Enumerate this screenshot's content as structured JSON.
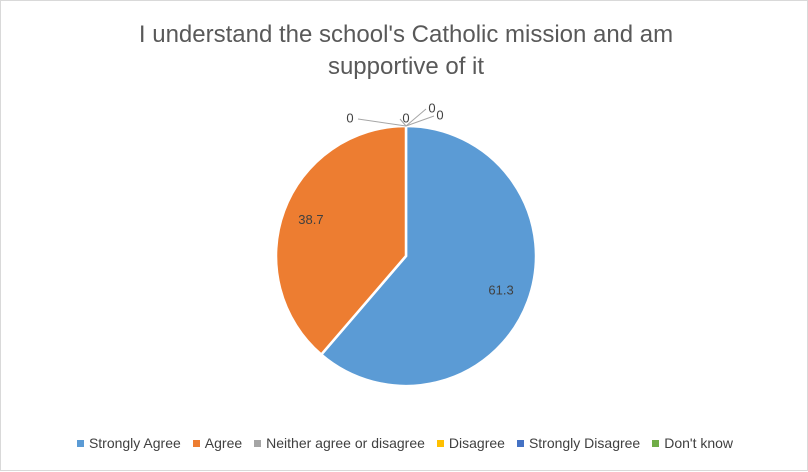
{
  "chart_data": {
    "type": "pie",
    "title": "I understand the school's Catholic mission and am supportive of it",
    "categories": [
      "Strongly Agree",
      "Agree",
      "Neither agree or disagree",
      "Disagree",
      "Strongly Disagree",
      "Don't know"
    ],
    "values": [
      61.3,
      38.7,
      0,
      0,
      0,
      0
    ],
    "value_labels": [
      "61.3",
      "38.7",
      "0",
      "0",
      "0",
      "0"
    ],
    "colors": [
      "#5b9bd5",
      "#ed7d31",
      "#a5a5a5",
      "#ffc000",
      "#4472c4",
      "#70ad47"
    ],
    "start_angle_deg": 0,
    "direction": "clockwise",
    "legend_position": "bottom"
  }
}
